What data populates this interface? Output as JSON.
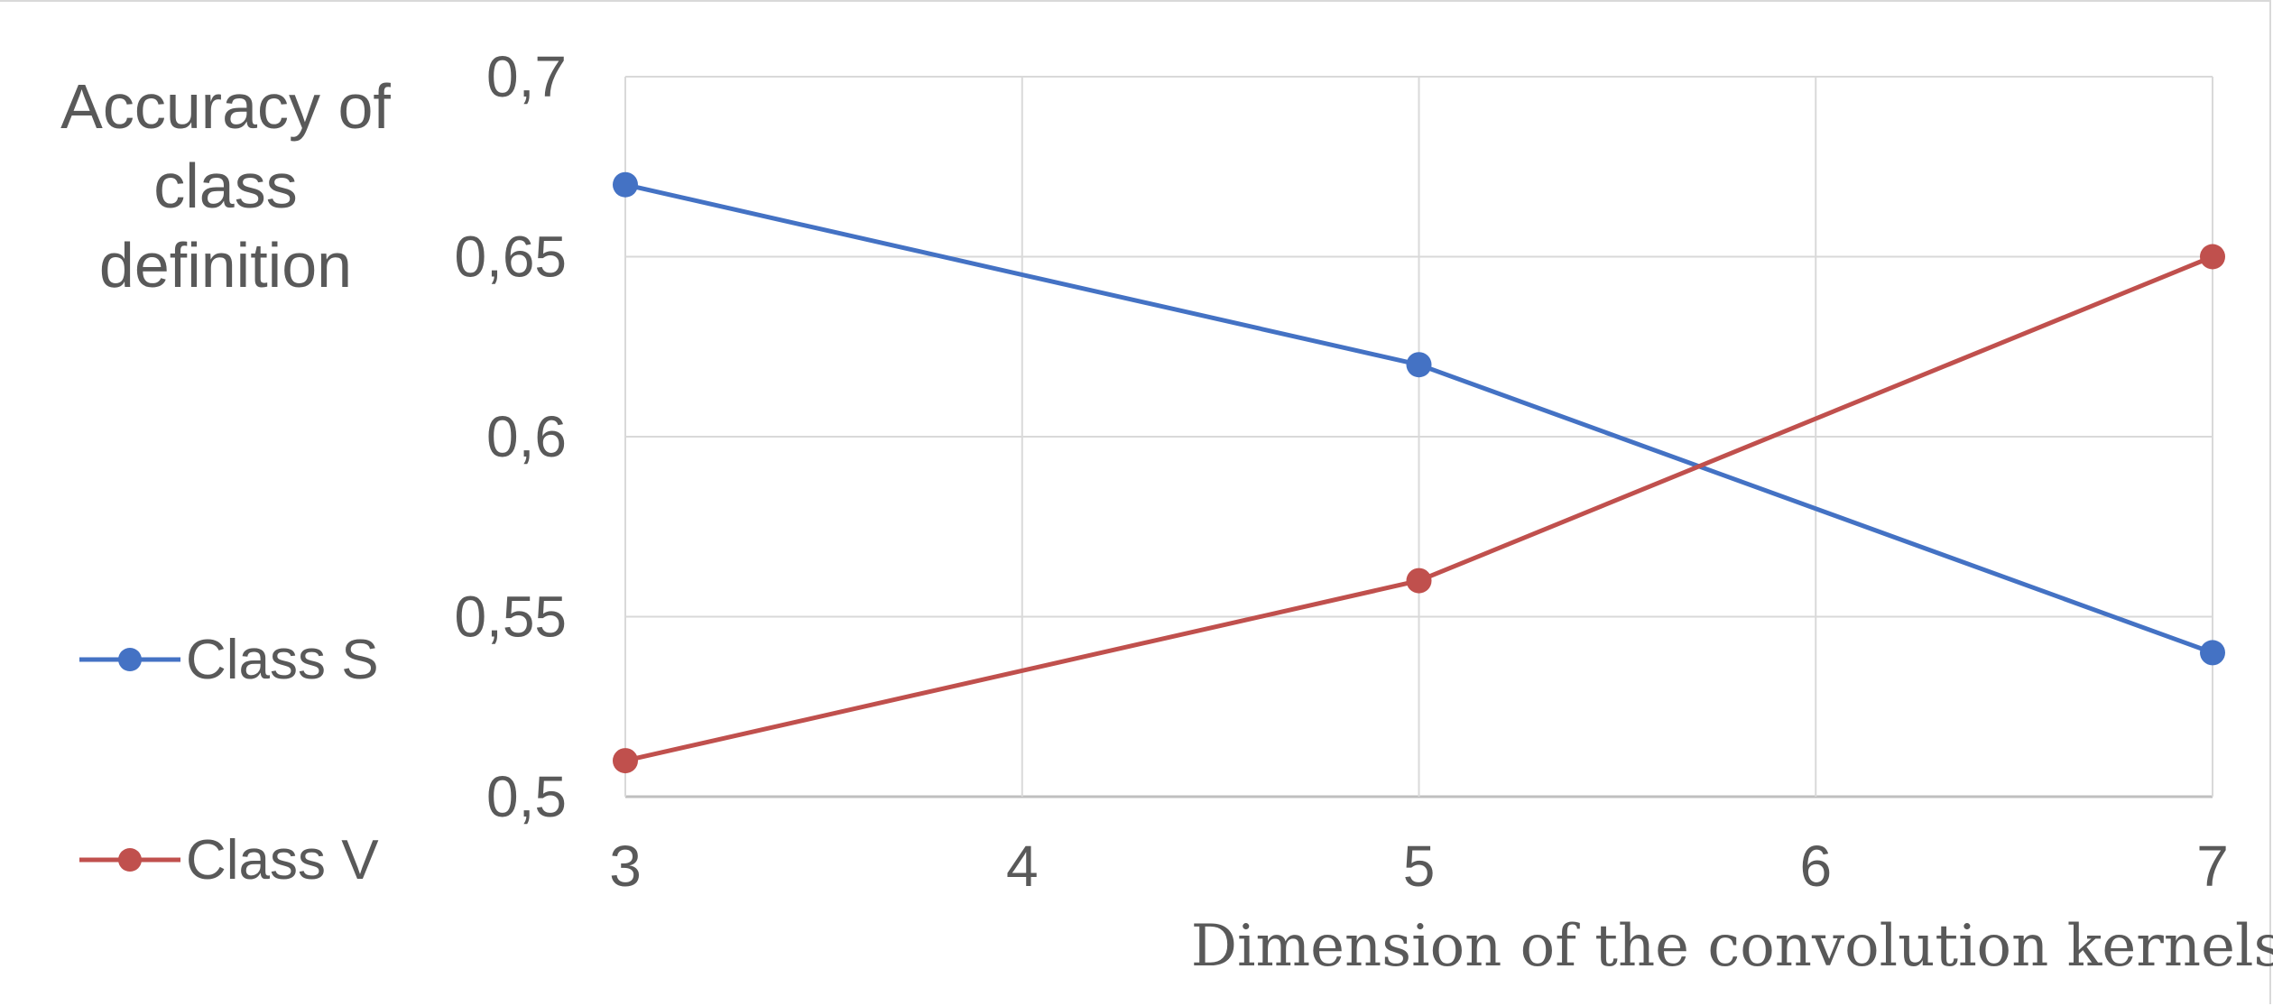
{
  "chart_data": {
    "type": "line",
    "ylabel_lines": [
      "Accuracy of",
      "class",
      "definition"
    ],
    "xlabel": "Dimension of the convolution kernels",
    "x_ticks": [
      "3",
      "4",
      "5",
      "6",
      "7"
    ],
    "y_ticks": [
      "0,5",
      "0,55",
      "0,6",
      "0,65",
      "0,7"
    ],
    "xlim": [
      3,
      7
    ],
    "ylim": [
      0.5,
      0.7
    ],
    "grid": true,
    "legend_position": "left",
    "series": [
      {
        "name": "Class S",
        "color": "#4472c4",
        "x": [
          3,
          5,
          7
        ],
        "y": [
          0.67,
          0.62,
          0.54
        ]
      },
      {
        "name": "Class V",
        "color": "#c0504d",
        "x": [
          3,
          5,
          7
        ],
        "y": [
          0.51,
          0.56,
          0.65
        ]
      }
    ]
  }
}
